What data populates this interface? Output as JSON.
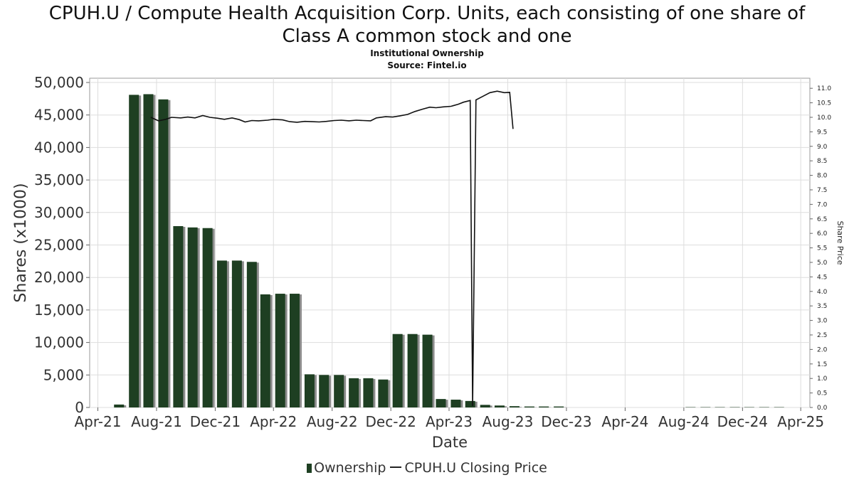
{
  "header": {
    "title_line1": "CPUH.U / Compute Health Acquisition Corp. Units, each consisting of one share of",
    "title_line2": "Class A common stock and one",
    "subtitle1": "Institutional Ownership",
    "subtitle2": "Source: Fintel.io"
  },
  "legend": {
    "ownership": "Ownership",
    "price": "CPUH.U Closing Price"
  },
  "colors": {
    "bar": "#1e3f22",
    "bar_shadow": "#8c8c8c",
    "line": "#111111",
    "grid": "#dddddd"
  },
  "chart_data": {
    "type": "bar",
    "xlabel": "Date",
    "ylabel": "Shares (x1000)",
    "y2label": "Share Price",
    "ylim": [
      0,
      50000
    ],
    "y2lim": [
      0,
      11.2
    ],
    "xlim": [
      "2021-03",
      "2025-04"
    ],
    "grid": true,
    "legend_position": "bottom",
    "x_ticks": [
      "Apr-21",
      "Aug-21",
      "Dec-21",
      "Apr-22",
      "Aug-22",
      "Dec-22",
      "Apr-23",
      "Aug-23",
      "Dec-23",
      "Apr-24",
      "Aug-24",
      "Dec-24",
      "Apr-25"
    ],
    "y_ticks": [
      "0",
      "5,000",
      "10,000",
      "15,000",
      "20,000",
      "25,000",
      "30,000",
      "35,000",
      "40,000",
      "45,000",
      "50,000"
    ],
    "y2_ticks": [
      "0.0",
      "0.5",
      "1.0",
      "1.5",
      "2.0",
      "2.5",
      "3.0",
      "3.5",
      "4.0",
      "4.5",
      "5.0",
      "5.5",
      "6.0",
      "6.5",
      "7.0",
      "7.5",
      "8.0",
      "8.5",
      "9.0",
      "9.5",
      "10.0",
      "10.5",
      "11.0"
    ],
    "series": [
      {
        "name": "Ownership",
        "type": "bar",
        "x": [
          "2021-05",
          "2021-06",
          "2021-07",
          "2021-08",
          "2021-09",
          "2021-10",
          "2021-11",
          "2021-12",
          "2022-01",
          "2022-02",
          "2022-03",
          "2022-04",
          "2022-05",
          "2022-06",
          "2022-07",
          "2022-08",
          "2022-09",
          "2022-10",
          "2022-11",
          "2022-12",
          "2023-01",
          "2023-02",
          "2023-03",
          "2023-04",
          "2023-05",
          "2023-06",
          "2023-07",
          "2023-08",
          "2023-09",
          "2023-10",
          "2023-11",
          "2024-08",
          "2024-09",
          "2024-10",
          "2024-11",
          "2024-12",
          "2025-01",
          "2025-02"
        ],
        "values": [
          450,
          48100,
          48200,
          47400,
          27900,
          27700,
          27600,
          22600,
          22600,
          22400,
          17400,
          17500,
          17500,
          5100,
          5000,
          5000,
          4500,
          4500,
          4300,
          11300,
          11300,
          11200,
          1300,
          1200,
          1000,
          400,
          300,
          200,
          150,
          150,
          150,
          50,
          50,
          50,
          50,
          50,
          50,
          50
        ]
      },
      {
        "name": "CPUH.U Closing Price",
        "type": "line",
        "points": [
          [
            "2021-07-20",
            10.0
          ],
          [
            "2021-08-05",
            9.88
          ],
          [
            "2021-08-20",
            9.93
          ],
          [
            "2021-09-01",
            10.0
          ],
          [
            "2021-09-20",
            9.98
          ],
          [
            "2021-10-05",
            10.01
          ],
          [
            "2021-10-20",
            9.98
          ],
          [
            "2021-11-05",
            10.06
          ],
          [
            "2021-11-20",
            10.0
          ],
          [
            "2021-12-05",
            9.97
          ],
          [
            "2021-12-20",
            9.93
          ],
          [
            "2022-01-05",
            9.98
          ],
          [
            "2022-01-20",
            9.92
          ],
          [
            "2022-02-01",
            9.84
          ],
          [
            "2022-02-15",
            9.89
          ],
          [
            "2022-03-01",
            9.88
          ],
          [
            "2022-03-20",
            9.9
          ],
          [
            "2022-04-01",
            9.93
          ],
          [
            "2022-04-20",
            9.91
          ],
          [
            "2022-05-05",
            9.85
          ],
          [
            "2022-05-20",
            9.83
          ],
          [
            "2022-06-05",
            9.86
          ],
          [
            "2022-06-20",
            9.85
          ],
          [
            "2022-07-05",
            9.84
          ],
          [
            "2022-07-20",
            9.86
          ],
          [
            "2022-08-05",
            9.89
          ],
          [
            "2022-08-20",
            9.9
          ],
          [
            "2022-09-05",
            9.88
          ],
          [
            "2022-09-20",
            9.9
          ],
          [
            "2022-10-05",
            9.89
          ],
          [
            "2022-10-20",
            9.88
          ],
          [
            "2022-11-01",
            9.98
          ],
          [
            "2022-11-20",
            10.02
          ],
          [
            "2022-12-05",
            10.01
          ],
          [
            "2022-12-20",
            10.05
          ],
          [
            "2023-01-05",
            10.1
          ],
          [
            "2023-01-20",
            10.2
          ],
          [
            "2023-02-05",
            10.28
          ],
          [
            "2023-02-20",
            10.35
          ],
          [
            "2023-03-05",
            10.33
          ],
          [
            "2023-03-20",
            10.36
          ],
          [
            "2023-04-05",
            10.38
          ],
          [
            "2023-04-20",
            10.45
          ],
          [
            "2023-05-01",
            10.52
          ],
          [
            "2023-05-15",
            10.58
          ],
          [
            "2023-05-20",
            0.05
          ],
          [
            "2023-05-27",
            10.6
          ],
          [
            "2023-06-10",
            10.72
          ],
          [
            "2023-06-25",
            10.85
          ],
          [
            "2023-07-10",
            10.9
          ],
          [
            "2023-07-25",
            10.85
          ],
          [
            "2023-08-05",
            10.86
          ],
          [
            "2023-08-12",
            9.6
          ]
        ]
      }
    ]
  }
}
